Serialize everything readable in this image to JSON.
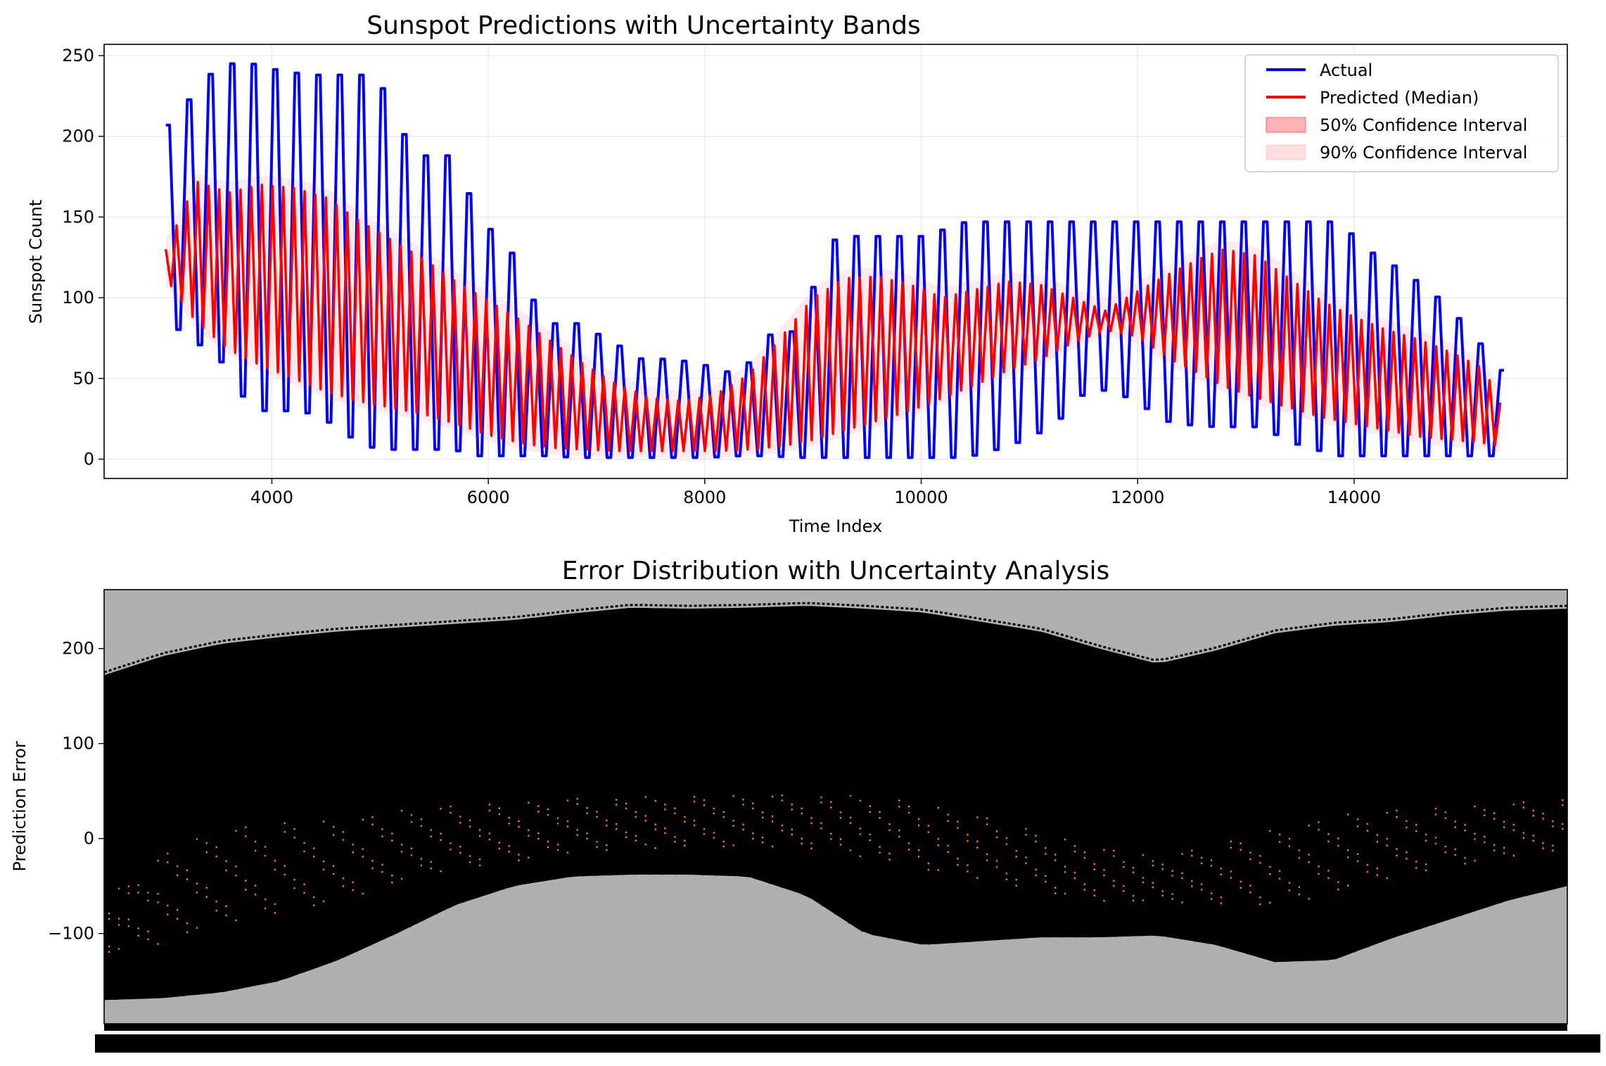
{
  "chart_data": [
    {
      "type": "line",
      "title": "Sunspot Predictions with Uncertainty Bands",
      "xlabel": "Time Index",
      "ylabel": "Sunspot Count",
      "xlim": [
        2450,
        15970
      ],
      "ylim": [
        -12,
        257
      ],
      "xticks": [
        4000,
        6000,
        8000,
        10000,
        12000,
        14000
      ],
      "yticks": [
        0,
        50,
        100,
        150,
        200,
        250
      ],
      "grid": true,
      "legend": {
        "placement": "top-right",
        "entries": [
          "Actual",
          "Predicted (Median)",
          "50% Confidence Interval",
          "90% Confidence Interval"
        ]
      },
      "colors": {
        "actual": "#0000ff",
        "predicted": "#ff0000",
        "ci50": "#ff9999",
        "ci90": "#ffdddd"
      },
      "series": [
        {
          "name": "Actual",
          "x": [
            3020,
            3500,
            3800,
            4100,
            4400,
            4700,
            4950,
            5300,
            5650,
            5900,
            6200,
            6500,
            6800,
            7100,
            7400,
            7700,
            8000,
            8300,
            8600,
            8800,
            9200,
            9600,
            10000,
            10400,
            10800,
            11200,
            11550,
            11900,
            12300,
            12700,
            13100,
            13500,
            13850,
            14100,
            14400,
            14700,
            15000,
            15350
          ],
          "upper": [
            207,
            245,
            245,
            240,
            238,
            238,
            238,
            188,
            188,
            150,
            128,
            84,
            84,
            74,
            62,
            62,
            58,
            52,
            78,
            79,
            138,
            138,
            138,
            147,
            147,
            147,
            147,
            147,
            147,
            147,
            147,
            147,
            147,
            130,
            118,
            104,
            84,
            55
          ],
          "lower": [
            85,
            62,
            30,
            30,
            28,
            14,
            6,
            6,
            6,
            2,
            2,
            2,
            1,
            1,
            1,
            1,
            1,
            2,
            2,
            1,
            1,
            1,
            1,
            1,
            8,
            20,
            45,
            38,
            22,
            20,
            20,
            8,
            2,
            2,
            2,
            2,
            2,
            2
          ]
        },
        {
          "name": "Predicted (Median)",
          "x": [
            3020,
            3300,
            3600,
            3900,
            4200,
            4500,
            4800,
            5100,
            5400,
            5700,
            6000,
            6300,
            6600,
            6900,
            7200,
            7500,
            7800,
            8100,
            8400,
            8700,
            9000,
            9300,
            9600,
            9900,
            10200,
            10500,
            10800,
            11100,
            11400,
            11700,
            12000,
            12300,
            12600,
            12800,
            13100,
            13400,
            13700,
            14000,
            14300,
            14600,
            14900,
            15200,
            15350
          ],
          "upper": [
            130,
            172,
            165,
            170,
            168,
            162,
            148,
            136,
            124,
            110,
            98,
            86,
            72,
            58,
            46,
            38,
            36,
            40,
            52,
            75,
            100,
            112,
            113,
            108,
            100,
            105,
            110,
            108,
            100,
            92,
            104,
            115,
            125,
            130,
            126,
            112,
            98,
            88,
            80,
            74,
            66,
            56,
            35
          ],
          "lower": [
            112,
            85,
            68,
            58,
            50,
            42,
            36,
            32,
            28,
            22,
            15,
            10,
            7,
            6,
            5,
            5,
            5,
            5,
            6,
            8,
            12,
            18,
            24,
            30,
            38,
            46,
            55,
            62,
            72,
            80,
            76,
            62,
            52,
            45,
            38,
            32,
            26,
            22,
            18,
            14,
            12,
            10,
            8
          ]
        }
      ]
    },
    {
      "type": "area",
      "title": "Error Distribution with Uncertainty Analysis",
      "xlabel": "",
      "ylabel": "Prediction Error",
      "ylim": [
        -195,
        262
      ],
      "yticks": [
        -100,
        0,
        100,
        200
      ],
      "grid": false,
      "colors": {
        "body": "#000000",
        "background": "#b0b0b0",
        "median": "#ff7f0e"
      },
      "series": [
        {
          "name": "",
          "x": [
            0,
            0.04,
            0.08,
            0.12,
            0.16,
            0.2,
            0.24,
            0.28,
            0.32,
            0.36,
            0.4,
            0.44,
            0.48,
            0.52,
            0.56,
            0.6,
            0.64,
            0.68,
            0.72,
            0.76,
            0.8,
            0.84,
            0.88,
            0.92,
            0.96,
            1.0
          ],
          "upper": [
            172,
            192,
            205,
            212,
            218,
            222,
            226,
            230,
            237,
            243,
            242,
            243,
            245,
            242,
            238,
            228,
            218,
            200,
            184,
            198,
            216,
            224,
            228,
            235,
            240,
            242
          ],
          "lower": [
            -170,
            -168,
            -162,
            -150,
            -128,
            -100,
            -70,
            -50,
            -40,
            -38,
            -38,
            -40,
            -60,
            -100,
            -112,
            -108,
            -104,
            -104,
            -102,
            -112,
            -130,
            -128,
            -105,
            -85,
            -65,
            -50
          ],
          "median_upper": [
            -60,
            -10,
            10,
            20,
            25,
            30,
            35,
            40,
            45,
            45,
            45,
            48,
            48,
            45,
            38,
            25,
            10,
            -5,
            -20,
            -5,
            15,
            25,
            30,
            35,
            40,
            45
          ],
          "median_lower": [
            -120,
            -110,
            -95,
            -80,
            -65,
            -50,
            -35,
            -25,
            -15,
            -10,
            -10,
            -10,
            -10,
            -20,
            -35,
            -45,
            -55,
            -65,
            -70,
            -70,
            -70,
            -60,
            -45,
            -30,
            -20,
            -10
          ]
        }
      ]
    }
  ]
}
